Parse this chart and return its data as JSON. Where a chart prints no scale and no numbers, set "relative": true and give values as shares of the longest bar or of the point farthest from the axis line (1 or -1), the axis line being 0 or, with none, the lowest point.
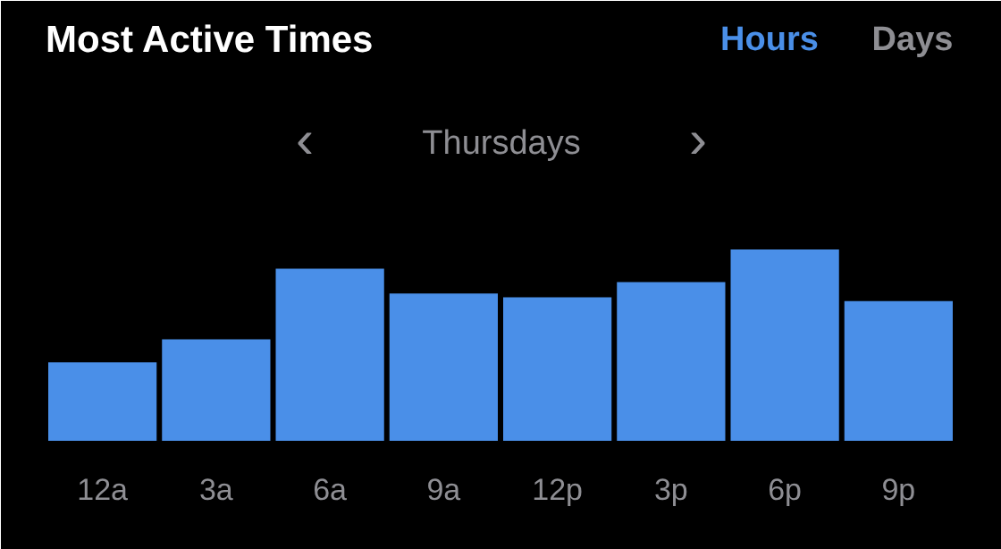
{
  "chart_data": {
    "type": "bar",
    "title": "Most Active Times",
    "subtitle": "Thursdays",
    "annotations": [
      "Hours",
      "Days",
      "‹",
      "›"
    ],
    "categories": [
      "12a",
      "3a",
      "6a",
      "9a",
      "12p",
      "3p",
      "6p",
      "9p"
    ],
    "values": [
      0.41,
      0.53,
      0.9,
      0.77,
      0.75,
      0.83,
      1,
      0.73
    ],
    "color": "#4a8fe8",
    "relative": true
  }
}
